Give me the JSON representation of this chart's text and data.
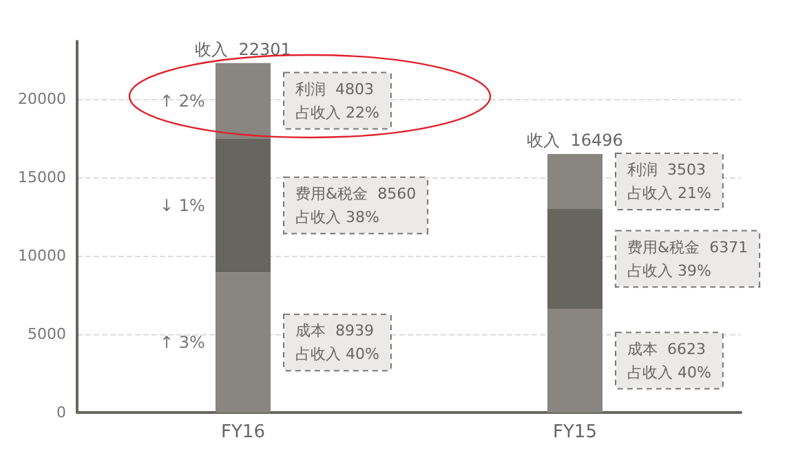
{
  "chart_data": {
    "type": "bar",
    "stacked": true,
    "categories": [
      "FY16",
      "FY15"
    ],
    "series": [
      {
        "color": "#898580",
        "values": [
          8939,
          6623
        ]
      },
      {
        "color": "#67655f",
        "values": [
          8560,
          6371
        ]
      },
      {
        "color": "#898580",
        "values": [
          4803,
          3503
        ]
      }
    ],
    "totals": [
      "收入  22301",
      "收入  16496"
    ],
    "annotations": [
      "↑ 3%",
      "↓ 1%",
      "↑ 2%",
      "成本  8939\n占收入 40%",
      "费用&税金  8560\n占收入 38%",
      "利润  4803\n占收入 22%",
      "成本  6623\n占收入 40%",
      "费用&税金  6371\n占收入 39%",
      "利润  3503\n占收入 21%"
    ],
    "ylim": [
      0,
      23700
    ],
    "yticks": [
      0,
      5000,
      10000,
      15000,
      20000
    ],
    "grid": "y"
  }
}
